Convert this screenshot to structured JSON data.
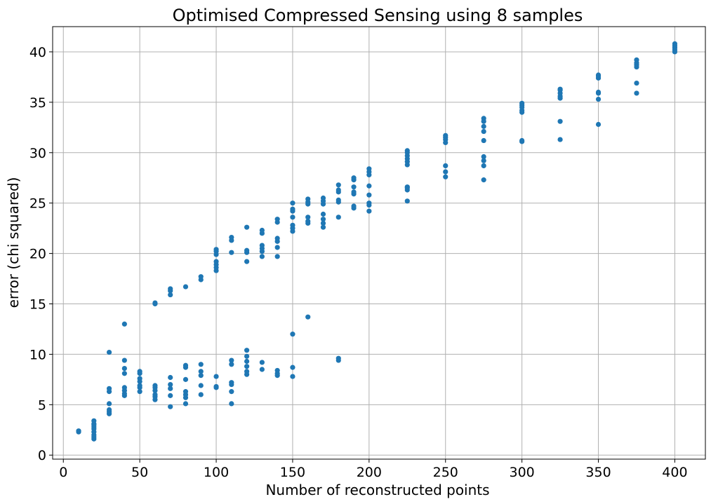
{
  "chart_data": {
    "type": "scatter",
    "title": "Optimised Compressed Sensing using 8 samples",
    "xlabel": "Number of reconstructed points",
    "ylabel": "error (chi squared)",
    "xlim": [
      -7,
      420
    ],
    "ylim": [
      -0.4,
      42.5
    ],
    "xticks": [
      0,
      50,
      100,
      150,
      200,
      250,
      300,
      350,
      400
    ],
    "yticks": [
      0,
      5,
      10,
      15,
      20,
      25,
      30,
      35,
      40
    ],
    "grid": true,
    "marker_color": "#1f77b4",
    "series": [
      {
        "points": [
          [
            10,
            2.3
          ],
          [
            10,
            2.4
          ],
          [
            20,
            1.6
          ],
          [
            20,
            1.8
          ],
          [
            20,
            2.0
          ],
          [
            20,
            2.3
          ],
          [
            20,
            2.6
          ],
          [
            20,
            2.8
          ],
          [
            20,
            3.0
          ],
          [
            20,
            3.1
          ],
          [
            20,
            3.4
          ],
          [
            30,
            4.1
          ],
          [
            30,
            4.3
          ],
          [
            30,
            4.5
          ],
          [
            30,
            5.1
          ],
          [
            30,
            6.3
          ],
          [
            30,
            6.6
          ],
          [
            30,
            10.2
          ],
          [
            40,
            5.9
          ],
          [
            40,
            6.1
          ],
          [
            40,
            6.4
          ],
          [
            40,
            6.7
          ],
          [
            40,
            8.1
          ],
          [
            40,
            8.6
          ],
          [
            40,
            9.4
          ],
          [
            40,
            13.0
          ],
          [
            50,
            6.3
          ],
          [
            50,
            6.7
          ],
          [
            50,
            6.9
          ],
          [
            50,
            7.3
          ],
          [
            50,
            7.6
          ],
          [
            50,
            8.1
          ],
          [
            50,
            8.3
          ],
          [
            60,
            5.5
          ],
          [
            60,
            5.8
          ],
          [
            60,
            6.0
          ],
          [
            60,
            6.4
          ],
          [
            60,
            6.7
          ],
          [
            60,
            6.9
          ],
          [
            60,
            15.0
          ],
          [
            60,
            15.1
          ],
          [
            70,
            4.8
          ],
          [
            70,
            5.9
          ],
          [
            70,
            6.6
          ],
          [
            70,
            7.0
          ],
          [
            70,
            7.7
          ],
          [
            70,
            15.9
          ],
          [
            70,
            16.3
          ],
          [
            70,
            16.5
          ],
          [
            80,
            5.1
          ],
          [
            80,
            5.7
          ],
          [
            80,
            6.0
          ],
          [
            80,
            6.3
          ],
          [
            80,
            7.5
          ],
          [
            80,
            8.7
          ],
          [
            80,
            8.9
          ],
          [
            80,
            16.7
          ],
          [
            90,
            6.0
          ],
          [
            90,
            6.9
          ],
          [
            90,
            7.9
          ],
          [
            90,
            8.3
          ],
          [
            90,
            9.0
          ],
          [
            90,
            17.4
          ],
          [
            90,
            17.7
          ],
          [
            100,
            6.7
          ],
          [
            100,
            6.8
          ],
          [
            100,
            7.8
          ],
          [
            100,
            18.3
          ],
          [
            100,
            18.6
          ],
          [
            100,
            18.9
          ],
          [
            100,
            19.2
          ],
          [
            100,
            19.9
          ],
          [
            100,
            20.2
          ],
          [
            100,
            20.4
          ],
          [
            110,
            5.1
          ],
          [
            110,
            6.3
          ],
          [
            110,
            7.0
          ],
          [
            110,
            7.2
          ],
          [
            110,
            9.0
          ],
          [
            110,
            9.4
          ],
          [
            110,
            20.1
          ],
          [
            110,
            21.3
          ],
          [
            110,
            21.6
          ],
          [
            120,
            8.0
          ],
          [
            120,
            8.3
          ],
          [
            120,
            8.8
          ],
          [
            120,
            9.3
          ],
          [
            120,
            9.8
          ],
          [
            120,
            10.4
          ],
          [
            120,
            19.2
          ],
          [
            120,
            20.1
          ],
          [
            120,
            20.3
          ],
          [
            120,
            22.6
          ],
          [
            130,
            8.5
          ],
          [
            130,
            9.2
          ],
          [
            130,
            19.7
          ],
          [
            130,
            20.2
          ],
          [
            130,
            20.5
          ],
          [
            130,
            20.8
          ],
          [
            130,
            22.0
          ],
          [
            130,
            22.3
          ],
          [
            140,
            7.9
          ],
          [
            140,
            8.1
          ],
          [
            140,
            8.4
          ],
          [
            140,
            19.7
          ],
          [
            140,
            20.6
          ],
          [
            140,
            21.2
          ],
          [
            140,
            21.5
          ],
          [
            140,
            23.1
          ],
          [
            140,
            23.4
          ],
          [
            150,
            7.8
          ],
          [
            150,
            8.7
          ],
          [
            150,
            12.0
          ],
          [
            150,
            22.2
          ],
          [
            150,
            22.5
          ],
          [
            150,
            22.8
          ],
          [
            150,
            23.6
          ],
          [
            150,
            24.2
          ],
          [
            150,
            24.4
          ],
          [
            150,
            25.0
          ],
          [
            160,
            13.7
          ],
          [
            160,
            23.0
          ],
          [
            160,
            23.2
          ],
          [
            160,
            23.6
          ],
          [
            160,
            24.9
          ],
          [
            160,
            25.1
          ],
          [
            160,
            25.4
          ],
          [
            170,
            22.6
          ],
          [
            170,
            23.0
          ],
          [
            170,
            23.4
          ],
          [
            170,
            23.9
          ],
          [
            170,
            24.9
          ],
          [
            170,
            25.2
          ],
          [
            170,
            25.5
          ],
          [
            180,
            9.4
          ],
          [
            180,
            9.6
          ],
          [
            180,
            23.6
          ],
          [
            180,
            25.1
          ],
          [
            180,
            25.3
          ],
          [
            180,
            26.1
          ],
          [
            180,
            26.3
          ],
          [
            180,
            26.8
          ],
          [
            190,
            24.5
          ],
          [
            190,
            24.7
          ],
          [
            190,
            25.9
          ],
          [
            190,
            26.1
          ],
          [
            190,
            26.6
          ],
          [
            190,
            27.3
          ],
          [
            190,
            27.5
          ],
          [
            200,
            24.2
          ],
          [
            200,
            24.8
          ],
          [
            200,
            25.0
          ],
          [
            200,
            25.8
          ],
          [
            200,
            26.7
          ],
          [
            200,
            27.8
          ],
          [
            200,
            28.1
          ],
          [
            200,
            28.4
          ],
          [
            225,
            25.2
          ],
          [
            225,
            26.3
          ],
          [
            225,
            26.5
          ],
          [
            225,
            26.6
          ],
          [
            225,
            28.8
          ],
          [
            225,
            29.1
          ],
          [
            225,
            29.4
          ],
          [
            225,
            29.7
          ],
          [
            225,
            30.0
          ],
          [
            225,
            30.2
          ],
          [
            250,
            27.6
          ],
          [
            250,
            28.1
          ],
          [
            250,
            28.7
          ],
          [
            250,
            31.0
          ],
          [
            250,
            31.3
          ],
          [
            250,
            31.5
          ],
          [
            250,
            31.7
          ],
          [
            275,
            27.3
          ],
          [
            275,
            28.7
          ],
          [
            275,
            29.2
          ],
          [
            275,
            29.6
          ],
          [
            275,
            31.2
          ],
          [
            275,
            32.1
          ],
          [
            275,
            32.6
          ],
          [
            275,
            33.1
          ],
          [
            275,
            33.4
          ],
          [
            300,
            31.1
          ],
          [
            300,
            31.2
          ],
          [
            300,
            34.0
          ],
          [
            300,
            34.2
          ],
          [
            300,
            34.5
          ],
          [
            300,
            34.7
          ],
          [
            300,
            34.9
          ],
          [
            325,
            31.3
          ],
          [
            325,
            33.1
          ],
          [
            325,
            35.4
          ],
          [
            325,
            35.6
          ],
          [
            325,
            35.9
          ],
          [
            325,
            36.2
          ],
          [
            325,
            36.3
          ],
          [
            350,
            32.8
          ],
          [
            350,
            35.3
          ],
          [
            350,
            35.9
          ],
          [
            350,
            36.0
          ],
          [
            350,
            37.4
          ],
          [
            350,
            37.6
          ],
          [
            350,
            37.7
          ],
          [
            375,
            35.9
          ],
          [
            375,
            36.9
          ],
          [
            375,
            38.5
          ],
          [
            375,
            38.7
          ],
          [
            375,
            38.9
          ],
          [
            375,
            39.2
          ],
          [
            400,
            40.0
          ],
          [
            400,
            40.2
          ],
          [
            400,
            40.4
          ],
          [
            400,
            40.6
          ],
          [
            400,
            40.8
          ]
        ]
      }
    ]
  }
}
